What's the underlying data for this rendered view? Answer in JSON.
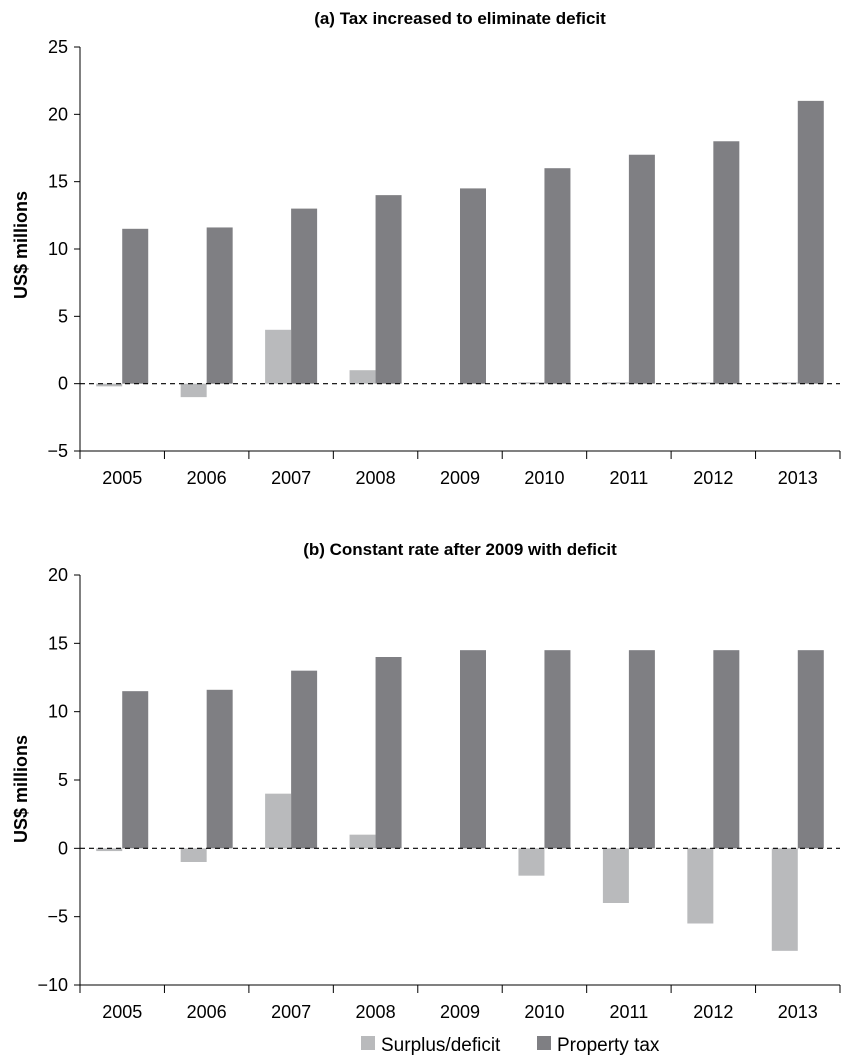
{
  "colors": {
    "surplus": "#b9babc",
    "property_tax": "#7f7f83"
  },
  "legend": {
    "surplus_label": "Surplus/deficit",
    "property_label": "Property tax"
  },
  "chart_data": [
    {
      "type": "bar",
      "title": "(a) Tax increased to eliminate deficit",
      "ylabel": "US$ millions",
      "xlabel": "",
      "categories": [
        "2005",
        "2006",
        "2007",
        "2008",
        "2009",
        "2010",
        "2011",
        "2012",
        "2013"
      ],
      "ylim": [
        -5,
        25
      ],
      "yticks": [
        -5,
        0,
        5,
        10,
        15,
        20,
        25
      ],
      "ytick_labels": [
        "−5",
        "0",
        "5",
        "10",
        "15",
        "20",
        "25"
      ],
      "series": [
        {
          "name": "Surplus/deficit",
          "values": [
            -0.2,
            -1,
            4,
            1,
            0,
            0.1,
            0.1,
            0.1,
            0.1
          ]
        },
        {
          "name": "Property tax",
          "values": [
            11.5,
            11.6,
            13,
            14,
            14.5,
            16,
            17,
            18,
            21
          ]
        }
      ]
    },
    {
      "type": "bar",
      "title": "(b) Constant rate after 2009 with deficit",
      "ylabel": "US$ millions",
      "xlabel": "",
      "categories": [
        "2005",
        "2006",
        "2007",
        "2008",
        "2009",
        "2010",
        "2011",
        "2012",
        "2013"
      ],
      "ylim": [
        -10,
        20
      ],
      "yticks": [
        -10,
        -5,
        0,
        5,
        10,
        15,
        20
      ],
      "ytick_labels": [
        "−10",
        "−5",
        "0",
        "5",
        "10",
        "15",
        "20"
      ],
      "series": [
        {
          "name": "Surplus/deficit",
          "values": [
            -0.2,
            -1,
            4,
            1,
            0,
            -2,
            -4,
            -5.5,
            -7.5
          ]
        },
        {
          "name": "Property tax",
          "values": [
            11.5,
            11.6,
            13,
            14,
            14.5,
            14.5,
            14.5,
            14.5,
            14.5
          ]
        }
      ]
    }
  ]
}
